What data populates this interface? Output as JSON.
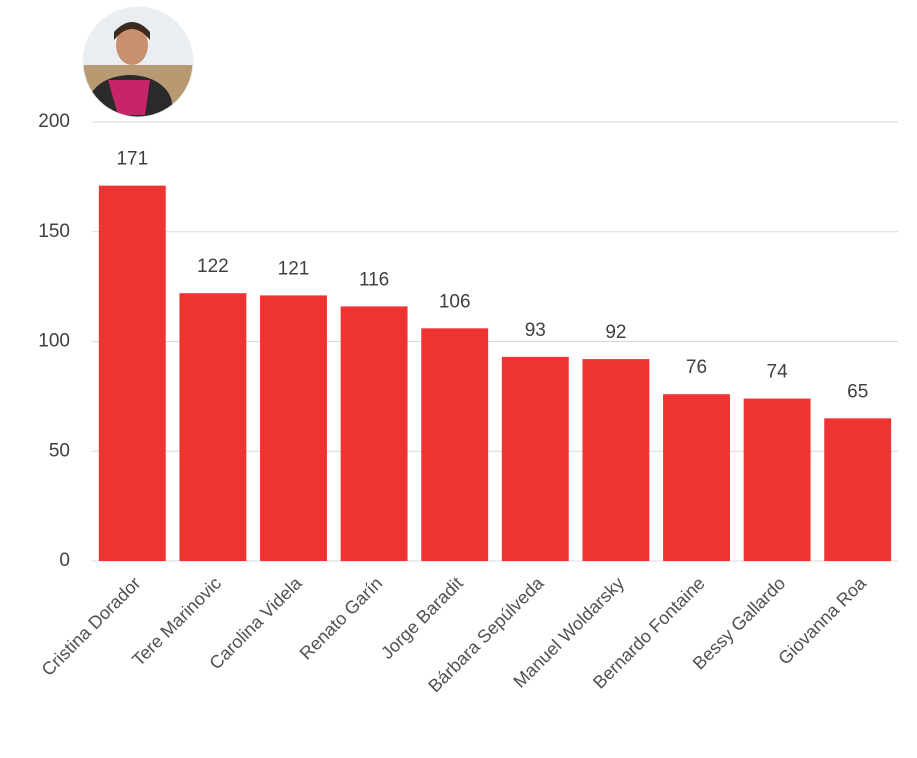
{
  "chart_data": {
    "type": "bar",
    "categories": [
      "Cristina Dorador",
      "Tere Marinovic",
      "Carolina Videla",
      "Renato Garín",
      "Jorge Baradit",
      "Bárbara Sepúlveda",
      "Manuel Woldarsky",
      "Bernardo Fontaine",
      "Bessy Gallardo",
      "Giovanna Roa"
    ],
    "values": [
      171,
      122,
      121,
      116,
      106,
      93,
      92,
      76,
      74,
      65
    ],
    "color": "#ee3333",
    "ylim": [
      0,
      200
    ],
    "yticks": [
      0,
      50,
      100,
      150,
      200
    ],
    "grid": true
  }
}
